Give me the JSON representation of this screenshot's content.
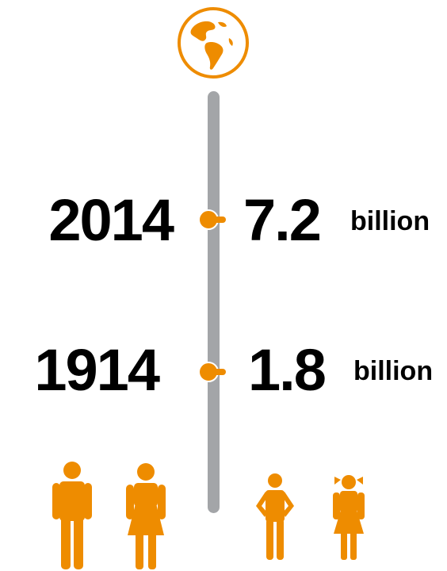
{
  "colors": {
    "accent": "#ee8c00",
    "bar": "#a3a5a8",
    "text": "#000000"
  },
  "icon": "globe-icon",
  "milestones": [
    {
      "year": "2014",
      "population": "7.2",
      "unit": "billion"
    },
    {
      "year": "1914",
      "population": "1.8",
      "unit": "billion"
    }
  ],
  "people": [
    "man-icon",
    "woman-icon",
    "boy-icon",
    "girl-icon"
  ]
}
